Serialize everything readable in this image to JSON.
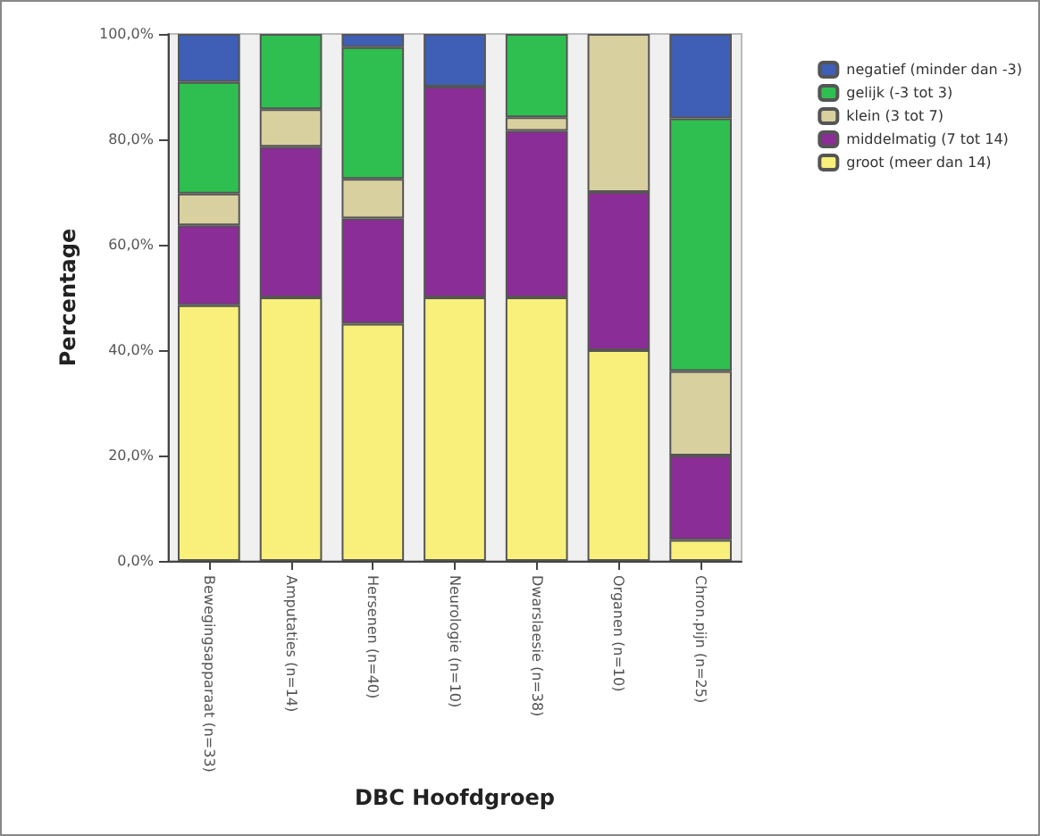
{
  "chart_data": {
    "type": "bar",
    "stacked": true,
    "xlabel": "DBC Hoofdgroep",
    "ylabel": "Percentage",
    "categories": [
      "Bewegingsapparaat (n=33)",
      "Amputaties (n=14)",
      "Hersenen (n=40)",
      "Neurologie (n=10)",
      "Dwarslaesie (n=38)",
      "Organen (n=10)",
      "Chron.pijn (n=25)"
    ],
    "series": [
      {
        "name": "groot (meer dan 14)",
        "color": "#f8f07a",
        "values": [
          48.5,
          50,
          45,
          50,
          50,
          40,
          4
        ]
      },
      {
        "name": "middelmatig (7 tot 14)",
        "color": "#8b2d96",
        "values": [
          15.2,
          28.6,
          20,
          40,
          31.6,
          30,
          16
        ]
      },
      {
        "name": "klein (3 tot 7)",
        "color": "#d9d0a0",
        "values": [
          6,
          7.1,
          7.5,
          null,
          2.6,
          30,
          16
        ]
      },
      {
        "name": "gelijk (-3 tot 3)",
        "color": "#2fbf50",
        "values": [
          21.2,
          14.3,
          25,
          null,
          15.8,
          null,
          48
        ]
      },
      {
        "name": "negatief (minder dan -3)",
        "color": "#3e5fb5",
        "values": [
          9.1,
          null,
          2.5,
          10,
          null,
          null,
          16
        ]
      }
    ],
    "ylim": [
      0,
      100
    ],
    "yticks": [
      {
        "value": 0,
        "label": "0,0%"
      },
      {
        "value": 20,
        "label": "20,0%"
      },
      {
        "value": 40,
        "label": "40,0%"
      },
      {
        "value": 60,
        "label": "60,0%"
      },
      {
        "value": 80,
        "label": "80,0%"
      },
      {
        "value": 100,
        "label": "100,0%"
      }
    ],
    "grid": false,
    "legend": "top right"
  }
}
